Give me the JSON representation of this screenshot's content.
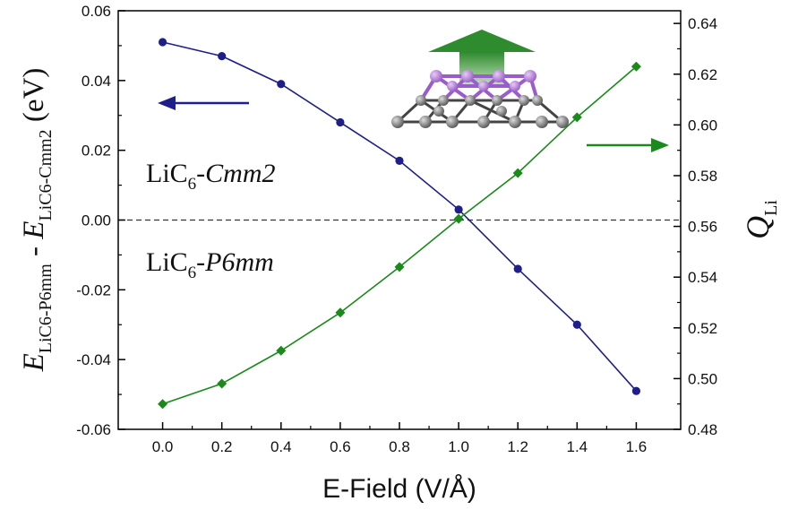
{
  "chart_data": {
    "type": "line",
    "xlabel": "E-Field (V/Å)",
    "xlim": [
      -0.15,
      1.75
    ],
    "x_ticks": [
      "0.0",
      "0.2",
      "0.4",
      "0.6",
      "0.8",
      "1.0",
      "1.2",
      "1.4",
      "1.6"
    ],
    "left_axis": {
      "label_parts": {
        "e1": "E",
        "sub1": "LiC6-P6mm",
        "mid": " - ",
        "e2": "E",
        "sub2": "LiC6-Cmm2",
        "unit": " (eV)"
      },
      "ylim": [
        -0.06,
        0.06
      ],
      "ticks": [
        "-0.06",
        "-0.04",
        "-0.02",
        "0.00",
        "0.02",
        "0.04",
        "0.06"
      ]
    },
    "right_axis": {
      "label_main": "Q",
      "label_sub": "Li",
      "ylim": [
        0.48,
        0.645
      ],
      "ticks": [
        "0.48",
        "0.50",
        "0.52",
        "0.54",
        "0.56",
        "0.58",
        "0.60",
        "0.62",
        "0.64"
      ]
    },
    "series": [
      {
        "axis": "left",
        "color": "#1f1f8a",
        "marker": "circle",
        "x": [
          0.0,
          0.2,
          0.4,
          0.6,
          0.8,
          1.0,
          1.2,
          1.4,
          1.6
        ],
        "y": [
          0.051,
          0.047,
          0.039,
          0.028,
          0.017,
          0.003,
          -0.014,
          -0.03,
          -0.049
        ]
      },
      {
        "axis": "right",
        "color": "#1a8a1a",
        "marker": "diamond",
        "x": [
          0.0,
          0.2,
          0.4,
          0.6,
          0.8,
          1.0,
          1.2,
          1.4,
          1.6
        ],
        "y": [
          0.49,
          0.498,
          0.511,
          0.526,
          0.544,
          0.563,
          0.581,
          0.603,
          0.623
        ]
      }
    ],
    "reference_line": {
      "axis": "left",
      "y": 0.0,
      "style": "dashed"
    },
    "annotations": {
      "upper_phase": {
        "base": "LiC",
        "sub": "6",
        "suffix": "-Cmm2"
      },
      "lower_phase": {
        "base": "LiC",
        "sub": "6",
        "suffix": "-P6mm"
      }
    },
    "indicator_arrows": [
      {
        "points_to": "left axis",
        "color": "#1f1f8a"
      },
      {
        "points_to": "right axis",
        "color": "#1a8a1a"
      }
    ],
    "inset_structure": {
      "field_arrow_color": "#2e8b2e",
      "li_atom_color": "#b07adc",
      "c_atom_color": "#777777"
    }
  }
}
